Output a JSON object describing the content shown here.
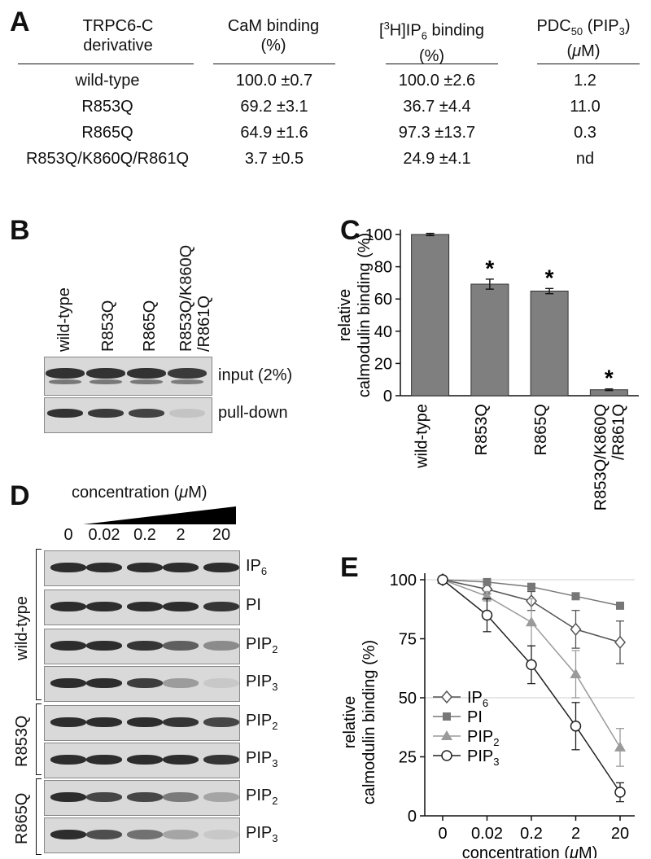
{
  "panels": {
    "a": "A",
    "b": "B",
    "c": "C",
    "d": "D",
    "e": "E"
  },
  "table": {
    "headers": [
      {
        "line1": "TRPC6-C",
        "line2": "derivative"
      },
      {
        "line1": "CaM binding",
        "line2": "(%)"
      },
      {
        "line1_pre": "[",
        "line1_sup": "3",
        "line1_post": "H]IP",
        "line1_sub": "6",
        "line1_end": " binding",
        "line2": "(%)"
      },
      {
        "line1_pre": "PDC",
        "line1_sub": "50",
        "line1_post": " (PIP",
        "line1_sub2": "3",
        "line1_end": ")",
        "line2_pre": "(",
        "line2_mu": "μ",
        "line2_post": "M)"
      }
    ],
    "rows": [
      [
        "wild-type",
        "100.0 ±0.7",
        "100.0 ±2.6",
        "1.2"
      ],
      [
        "R853Q",
        "69.2 ±3.1",
        "36.7 ±4.4",
        "11.0"
      ],
      [
        "R865Q",
        "64.9 ±1.6",
        "97.3 ±13.7",
        "0.3"
      ],
      [
        "R853Q/K860Q/R861Q",
        "3.7 ±0.5",
        "24.9 ±4.1",
        "nd"
      ]
    ]
  },
  "panel_b": {
    "lanes": [
      "wild-type",
      "R853Q",
      "R865Q",
      "R853Q/K860Q",
      "/R861Q"
    ],
    "blot_labels": [
      "input (2%)",
      "pull-down"
    ]
  },
  "panel_d": {
    "header_pre": "concentration (",
    "header_mu": "μ",
    "header_post": "M)",
    "lanes": [
      "0",
      "0.02",
      "0.2",
      "2",
      "20"
    ],
    "groups": [
      "wild-type",
      "R853Q",
      "R865Q"
    ],
    "rows": [
      {
        "label": "IP",
        "sub": "6",
        "intensity": [
          1,
          1,
          1,
          1,
          1
        ]
      },
      {
        "label": "PI",
        "sub": "",
        "intensity": [
          1,
          1,
          1,
          1,
          0.95
        ]
      },
      {
        "label": "PIP",
        "sub": "2",
        "intensity": [
          1,
          1,
          0.95,
          0.7,
          0.45
        ]
      },
      {
        "label": "PIP",
        "sub": "3",
        "intensity": [
          1,
          1,
          0.9,
          0.35,
          0.1
        ]
      },
      {
        "label": "PIP",
        "sub": "2",
        "intensity": [
          1,
          1,
          1,
          0.95,
          0.85
        ]
      },
      {
        "label": "PIP",
        "sub": "3",
        "intensity": [
          1,
          1,
          1,
          1,
          0.95
        ]
      },
      {
        "label": "PIP",
        "sub": "2",
        "intensity": [
          1,
          0.85,
          0.85,
          0.55,
          0.3
        ]
      },
      {
        "label": "PIP",
        "sub": "3",
        "intensity": [
          1,
          0.8,
          0.6,
          0.3,
          0.1
        ]
      }
    ]
  },
  "chart_data": [
    {
      "type": "bar",
      "panel": "C",
      "categories": [
        "wild-type",
        "R853Q",
        "R865Q",
        "R853Q/K860Q/R861Q"
      ],
      "category_labels": [
        [
          "wild-type"
        ],
        [
          "R853Q"
        ],
        [
          "R865Q"
        ],
        [
          "R853Q/K860Q",
          "/R861Q"
        ]
      ],
      "values": [
        100.0,
        69.2,
        64.9,
        3.7
      ],
      "errors": [
        0.7,
        3.1,
        1.6,
        0.5
      ],
      "significant": [
        false,
        true,
        true,
        true
      ],
      "sig_mark": "*",
      "ylabel_lines": [
        "relative",
        "calmodulin binding (%)"
      ],
      "ylim": [
        0,
        100
      ],
      "yticks": [
        0,
        20,
        40,
        60,
        80,
        100
      ],
      "bar_color": "#7f7f7f"
    },
    {
      "type": "line",
      "panel": "E",
      "x": [
        "0",
        "0.02",
        "0.2",
        "2",
        "20"
      ],
      "xlabel_pre": "concentration (",
      "xlabel_mu": "μ",
      "xlabel_post": "M)",
      "ylabel_lines": [
        "relative",
        "calmodulin binding (%)"
      ],
      "ylim": [
        0,
        100
      ],
      "yticks": [
        0,
        25,
        50,
        75,
        100
      ],
      "gridlines": [
        50,
        100
      ],
      "legend_position": "bottom-left",
      "series": [
        {
          "name": "IP",
          "sub": "6",
          "marker": "diamond-open",
          "color": "#555555",
          "values": [
            100,
            96,
            91,
            79,
            73.5
          ],
          "errors": [
            1,
            2,
            4,
            8,
            9
          ]
        },
        {
          "name": "PI",
          "sub": "",
          "marker": "square-filled",
          "color": "#777777",
          "values": [
            100,
            99,
            97,
            93,
            89
          ],
          "errors": [
            1,
            1,
            1,
            1,
            1
          ]
        },
        {
          "name": "PIP",
          "sub": "2",
          "marker": "triangle-filled",
          "color": "#9a9a9a",
          "values": [
            100,
            93,
            82,
            60,
            29
          ],
          "errors": [
            1,
            2,
            10,
            10,
            8
          ]
        },
        {
          "name": "PIP",
          "sub": "3",
          "marker": "circle-open",
          "color": "#222222",
          "values": [
            100,
            85,
            64,
            38,
            10
          ],
          "errors": [
            1,
            7,
            8,
            10,
            4
          ]
        }
      ]
    }
  ]
}
